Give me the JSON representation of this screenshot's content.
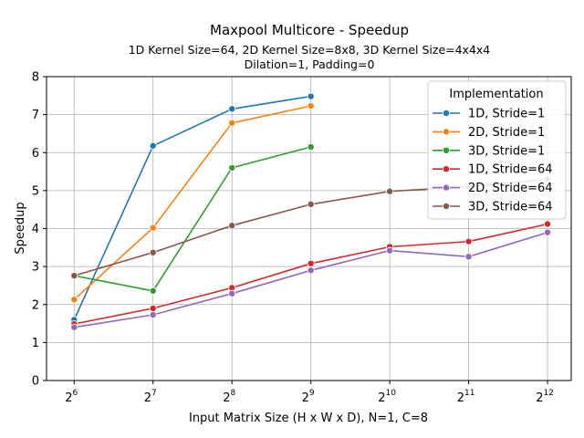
{
  "chart_data": {
    "type": "line",
    "title": "Maxpool Multicore - Speedup",
    "subtitle_lines": [
      "1D Kernel Size=64, 2D Kernel Size=8x8, 3D Kernel Size=4x4x4",
      "Dilation=1, Padding=0"
    ],
    "xlabel": "Input Matrix Size (H x W x D), N=1, C=8",
    "ylabel": "Speedup",
    "x_scale": "log2",
    "x_ticks": [
      64,
      128,
      256,
      512,
      1024,
      2048,
      4096
    ],
    "x_tick_labels": [
      {
        "base": "2",
        "exp": "6"
      },
      {
        "base": "2",
        "exp": "7"
      },
      {
        "base": "2",
        "exp": "8"
      },
      {
        "base": "2",
        "exp": "9"
      },
      {
        "base": "2",
        "exp": "10"
      },
      {
        "base": "2",
        "exp": "11"
      },
      {
        "base": "2",
        "exp": "12"
      }
    ],
    "ylim": [
      0,
      8
    ],
    "y_ticks": [
      "0",
      "1",
      "2",
      "3",
      "4",
      "5",
      "6",
      "7",
      "8"
    ],
    "grid": true,
    "legend": {
      "title": "Implementation",
      "placement": "top-right"
    },
    "series": [
      {
        "name": "1D, Stride=1",
        "color": "#1f77b4",
        "x": [
          64,
          128,
          256,
          512
        ],
        "y": [
          1.6,
          6.18,
          7.15,
          7.48
        ]
      },
      {
        "name": "2D, Stride=1",
        "color": "#ff7f0e",
        "x": [
          64,
          128,
          256,
          512
        ],
        "y": [
          2.13,
          4.02,
          6.78,
          7.23
        ]
      },
      {
        "name": "3D, Stride=1",
        "color": "#2ca02c",
        "x": [
          64,
          128,
          256,
          512
        ],
        "y": [
          2.76,
          2.36,
          5.6,
          6.15
        ]
      },
      {
        "name": "1D, Stride=64",
        "color": "#d62728",
        "x": [
          64,
          128,
          256,
          512,
          1024,
          2048,
          4096
        ],
        "y": [
          1.49,
          1.9,
          2.44,
          3.08,
          3.52,
          3.66,
          4.12
        ]
      },
      {
        "name": "2D, Stride=64",
        "color": "#9467bd",
        "x": [
          64,
          128,
          256,
          512,
          1024,
          2048,
          4096
        ],
        "y": [
          1.4,
          1.73,
          2.29,
          2.9,
          3.42,
          3.26,
          3.9
        ]
      },
      {
        "name": "3D, Stride=64",
        "color": "#8c564b",
        "x": [
          64,
          128,
          256,
          512,
          1024,
          2048,
          4096
        ],
        "y": [
          2.76,
          3.37,
          4.08,
          4.64,
          4.98,
          5.1,
          5.3
        ]
      }
    ]
  }
}
